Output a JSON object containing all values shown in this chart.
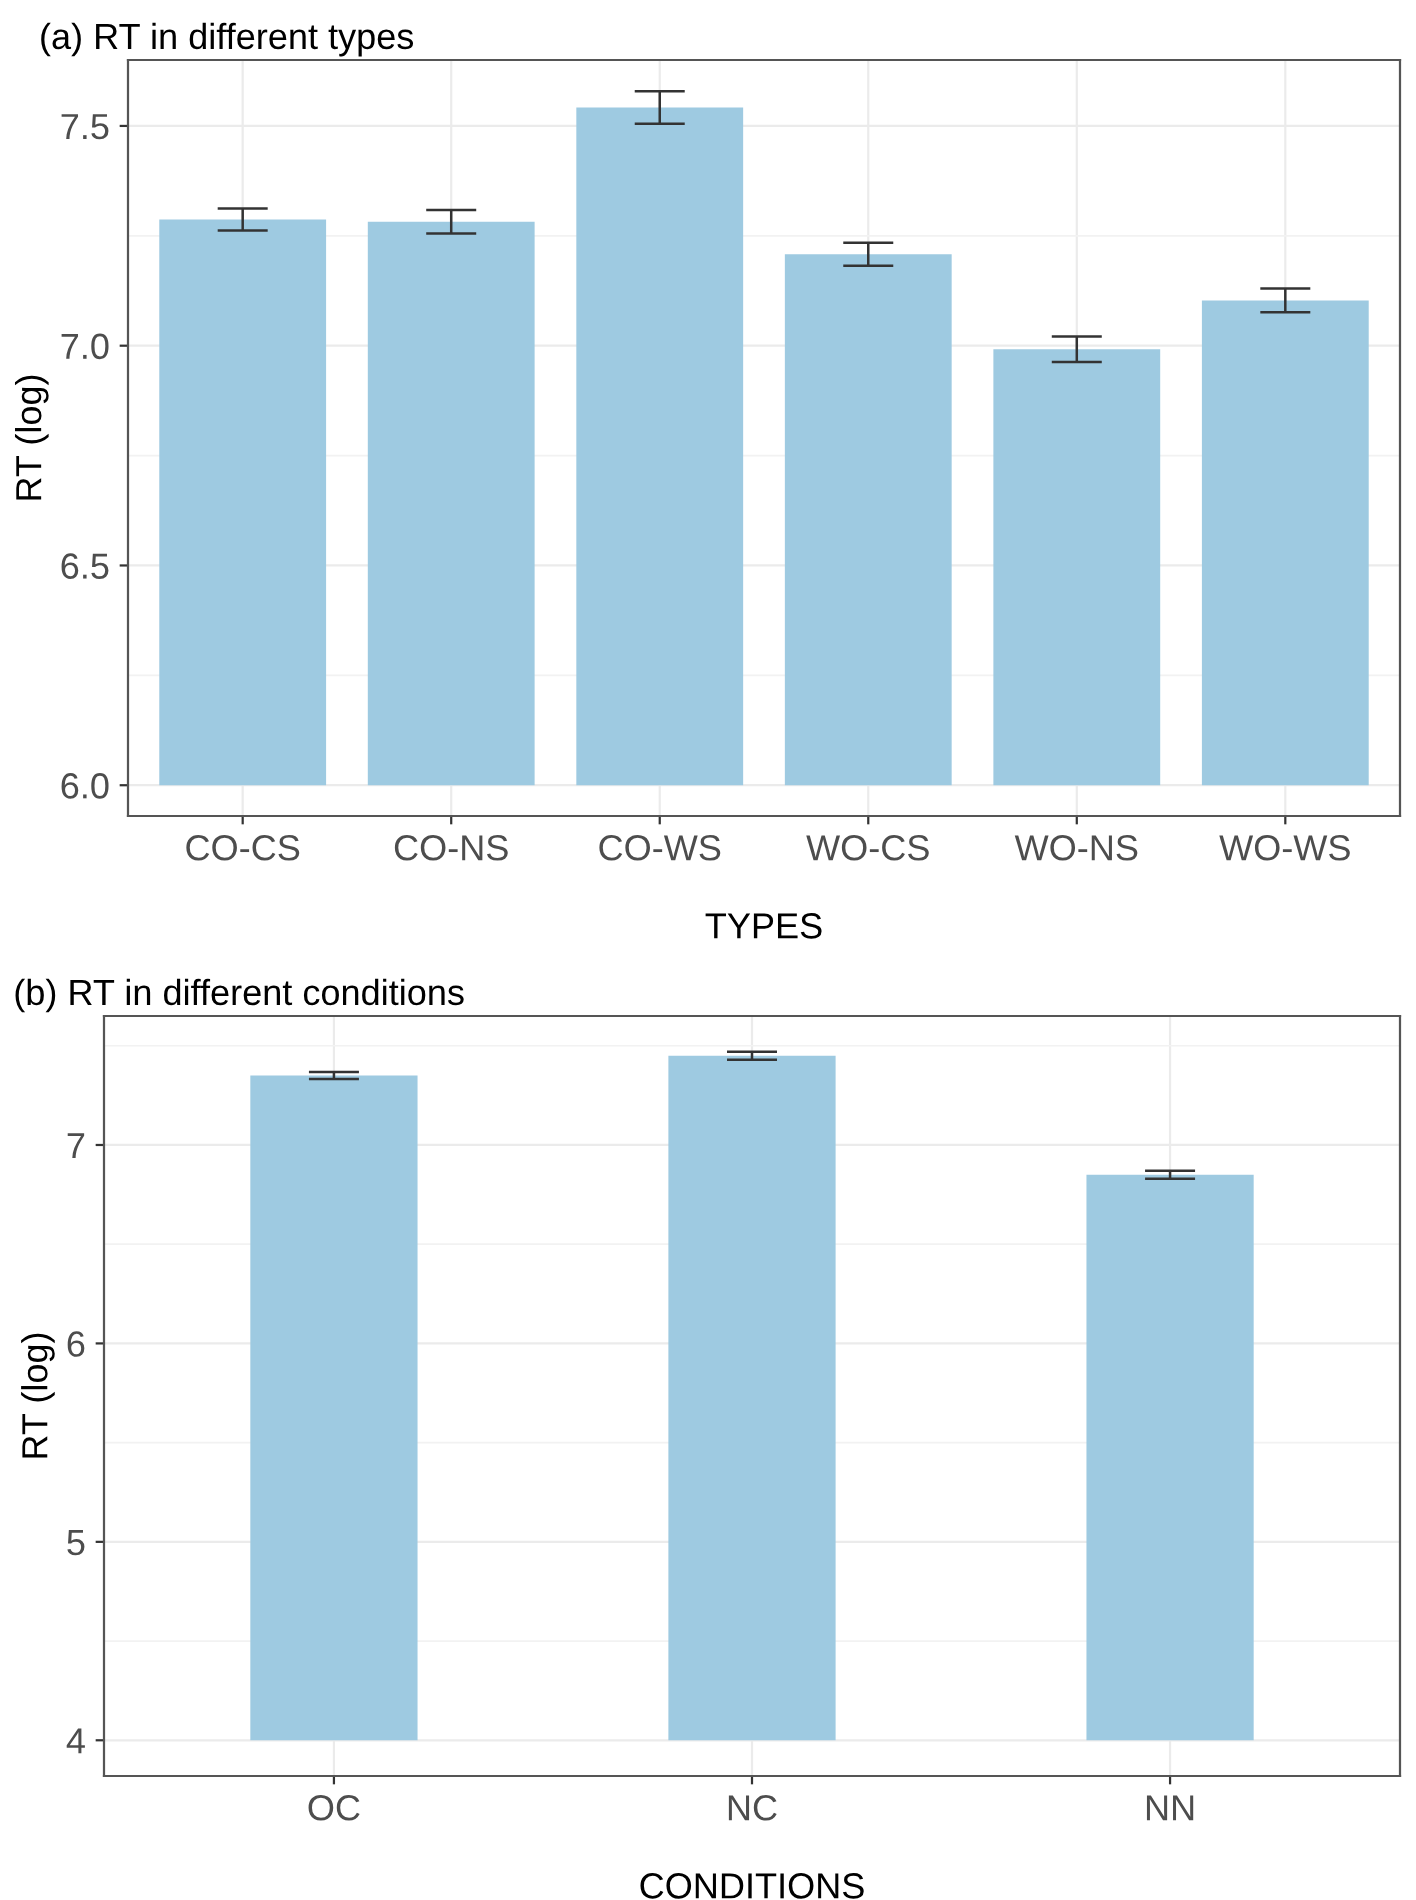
{
  "chart_data": [
    {
      "type": "bar",
      "title": "(a) RT in different types",
      "xlabel": "TYPES",
      "ylabel": "RT (log)",
      "categories": [
        "CO-CS",
        "CO-NS",
        "CO-WS",
        "WO-CS",
        "WO-NS",
        "WO-WS"
      ],
      "base": [
        6.0,
        6.0,
        6.0,
        6.0,
        6.0,
        6.0
      ],
      "values": [
        1.287,
        1.282,
        1.542,
        1.208,
        0.992,
        1.103
      ],
      "errors": [
        0.025,
        0.027,
        0.037,
        0.026,
        0.029,
        0.027
      ],
      "color": "#9ecae1",
      "ylim": [
        5.93,
        7.65
      ],
      "yticks": [
        {
          "value": 6.0,
          "label": "6.0"
        },
        6.5,
        {
          "value": 7.0,
          "label": "7.0"
        },
        7.5
      ],
      "grid": true
    },
    {
      "type": "bar",
      "title": "(b) RT in different conditions",
      "xlabel": "CONDITIONS",
      "ylabel": "RT (log)",
      "categories": [
        "OC",
        "NC",
        "NN"
      ],
      "base": [
        4,
        4,
        4
      ],
      "values": [
        3.35,
        3.45,
        2.85
      ],
      "errors": [
        0.018,
        0.02,
        0.02
      ],
      "color": "#9ecae1",
      "ylim": [
        3.82,
        7.65
      ],
      "yticks": [
        4,
        5,
        6,
        7
      ],
      "grid": true
    }
  ]
}
